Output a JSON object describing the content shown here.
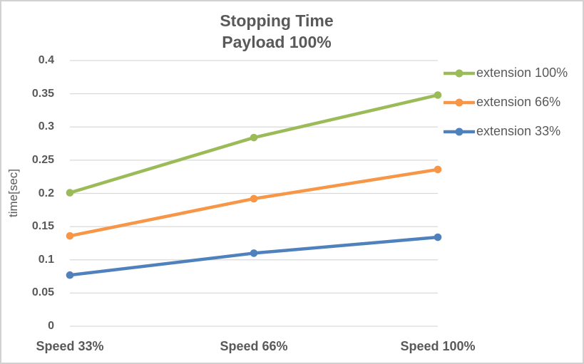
{
  "chart_data": {
    "type": "line",
    "title": "Stopping Time",
    "subtitle": "Payload 100%",
    "xlabel": "",
    "ylabel": "time[sec]",
    "categories": [
      "Speed 33%",
      "Speed 66%",
      "Speed 100%"
    ],
    "series": [
      {
        "name": "extension 100%",
        "color": "#9BBB59",
        "values": [
          0.201,
          0.284,
          0.348
        ]
      },
      {
        "name": "extension 66%",
        "color": "#F79646",
        "values": [
          0.136,
          0.192,
          0.236
        ]
      },
      {
        "name": "extension 33%",
        "color": "#4F81BD",
        "values": [
          0.077,
          0.11,
          0.134
        ]
      }
    ],
    "ylim": [
      0,
      0.4
    ],
    "y_ticks": [
      0,
      0.05,
      0.1,
      0.15,
      0.2,
      0.25,
      0.3,
      0.35,
      0.4
    ],
    "y_tick_labels": [
      "0",
      "0.05",
      "0.1",
      "0.15",
      "0.2",
      "0.25",
      "0.3",
      "0.35",
      "0.4"
    ],
    "grid": true,
    "legend_position": "right",
    "marker": "circle"
  },
  "colors": {
    "text": "#595959",
    "gridline": "#D9D9D9",
    "border": "#D2D0D0",
    "background": "#FFFFFF"
  }
}
